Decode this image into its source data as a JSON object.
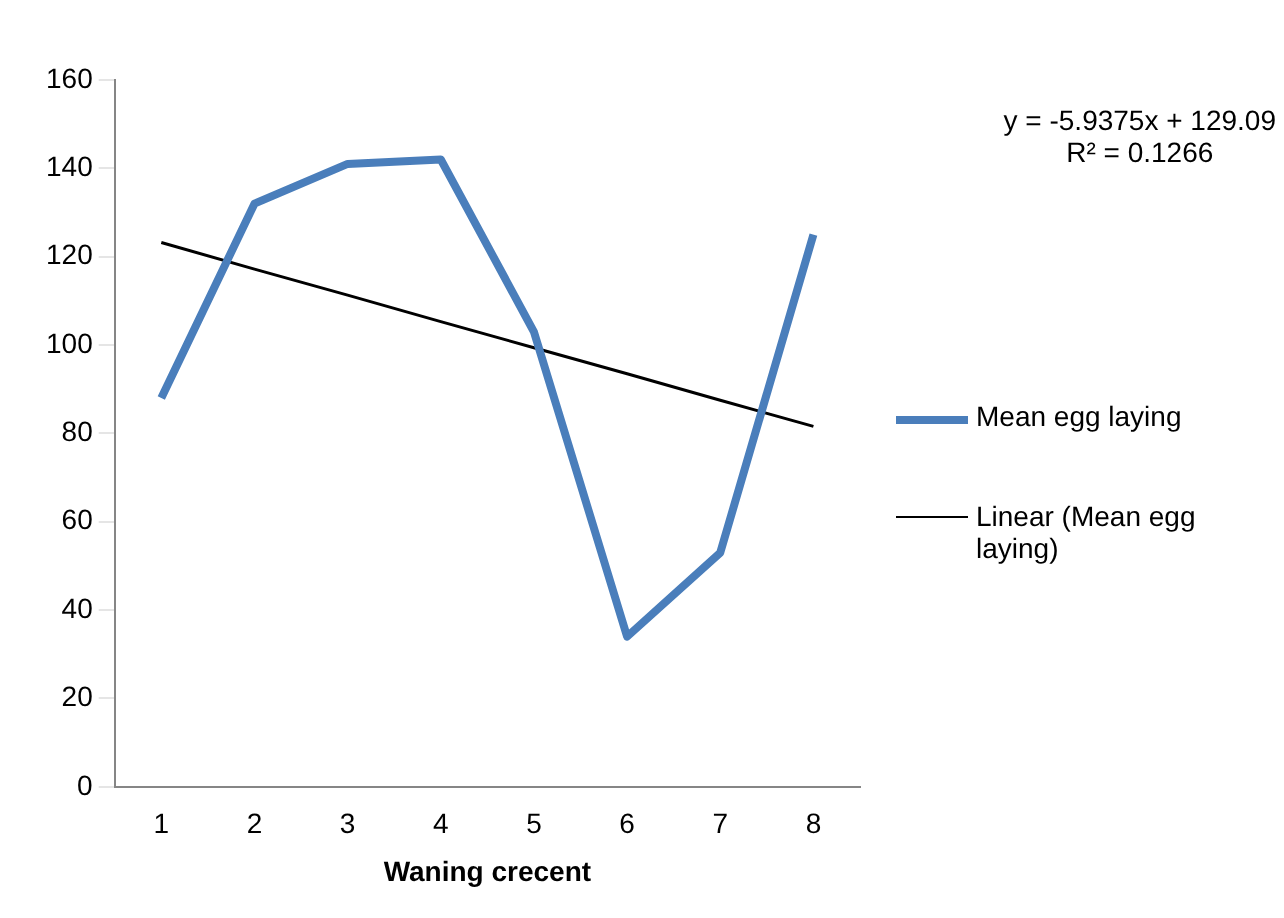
{
  "chart_data": {
    "type": "line",
    "xlabel": "Waning crecent",
    "categories": [
      "1",
      "2",
      "3",
      "4",
      "5",
      "6",
      "7",
      "8"
    ],
    "series": [
      {
        "name": "Mean egg laying",
        "color": "#4a7ebb",
        "values": [
          88,
          132,
          141,
          142,
          103,
          34,
          53,
          125
        ]
      },
      {
        "name": "Linear (Mean egg laying)",
        "type": "line",
        "color": "#000000",
        "values": [
          123.2,
          117.2,
          111.3,
          105.3,
          99.4,
          93.5,
          87.5,
          81.6
        ]
      }
    ],
    "ylim": [
      0,
      160
    ],
    "yticks": [
      0,
      20,
      40,
      60,
      80,
      100,
      120,
      140,
      160
    ],
    "grid": false,
    "legend": "right",
    "marker": "none",
    "annotations": [
      "y = -5.9375x + 129.09",
      "R² = 0.1266"
    ]
  }
}
